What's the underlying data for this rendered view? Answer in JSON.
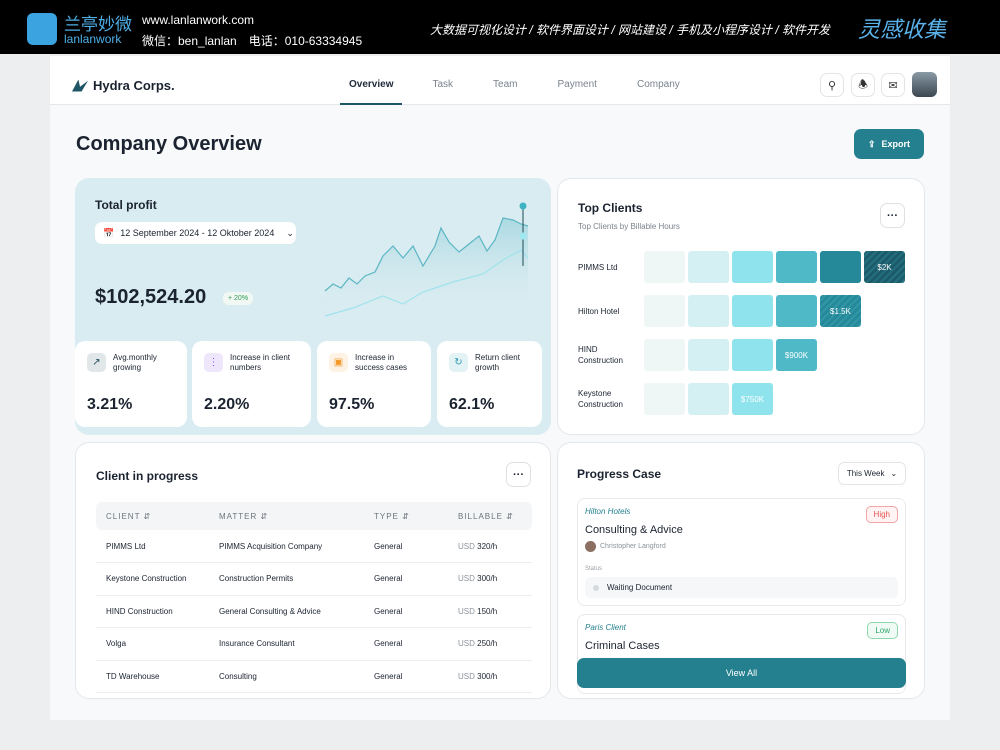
{
  "banner": {
    "name": "兰亭妙微",
    "sub": "lanlanwork",
    "url": "www.lanlanwork.com",
    "contact": "微信：ben_lanlan　电话：010-63334945",
    "services": "大数据可视化设计 / 软件界面设计 / 网站建设 / 手机及小程序设计 / 软件开发",
    "brand": "灵感收集"
  },
  "nav": {
    "logo": "Hydra Corps.",
    "tabs": [
      "Overview",
      "Task",
      "Team",
      "Payment",
      "Company"
    ],
    "active": "Overview"
  },
  "page": {
    "title": "Company Overview",
    "export": "Export"
  },
  "profit": {
    "title": "Total profit",
    "date_range": "12 September 2024 - 12 Oktober 2024",
    "amount": "$102,524.20",
    "change": "+ 20%",
    "stats": [
      {
        "label": "Avg.monthly growing",
        "value": "3.21%",
        "icon": "trend-chart-icon",
        "color": "#1c4a57"
      },
      {
        "label": "Increase in client numbers",
        "value": "2.20%",
        "icon": "users-icon",
        "color": "#7c4dea"
      },
      {
        "label": "Increase in success cases",
        "value": "97.5%",
        "icon": "briefcase-icon",
        "color": "#f39a2c"
      },
      {
        "label": "Return client growth",
        "value": "62.1%",
        "icon": "refresh-icon",
        "color": "#2a9bb0"
      }
    ]
  },
  "top_clients": {
    "title": "Top Clients",
    "subtitle": "Top Clients by Billable Hours",
    "rows": [
      {
        "name": "PIMMS Ltd",
        "level": 6,
        "value": "$2K"
      },
      {
        "name": "Hilton Hotel",
        "level": 5,
        "value": "$1.5K"
      },
      {
        "name": "HIND Construction",
        "level": 4,
        "value": "$900K"
      },
      {
        "name": "Keystone Construction",
        "level": 3,
        "value": "$750K"
      }
    ],
    "colors": [
      "#eef6f6",
      "#d5f0f2",
      "#8ee3ec",
      "#4fb9c7",
      "#25899a",
      "#1c5b6a"
    ]
  },
  "client_progress": {
    "title": "Client in progress",
    "columns": [
      "CLIENT",
      "MATTER",
      "TYPE",
      "BILLABLE"
    ],
    "rows": [
      [
        "PIMMS Ltd",
        "PIMMS Acquisition Company",
        "General",
        "USD",
        "320/h"
      ],
      [
        "Keystone Construction",
        "Construction Permits",
        "General",
        "USD",
        "300/h"
      ],
      [
        "HIND Construction",
        "General Consulting & Advice",
        "General",
        "USD",
        "150/h"
      ],
      [
        "Volga",
        "Insurance Consultant",
        "General",
        "USD",
        "250/h"
      ],
      [
        "TD Warehouse",
        "Consulting",
        "General",
        "USD",
        "300/h"
      ]
    ]
  },
  "progress_case": {
    "title": "Progress Case",
    "filter": "This Week",
    "view_all": "View All",
    "cases": [
      {
        "client": "Hilton Hotels",
        "title": "Consulting & Advice",
        "priority": "High",
        "person": "Christopher Langford",
        "status_label": "Status",
        "status": "Waiting Document"
      },
      {
        "client": "Paris Client",
        "title": "Criminal Cases",
        "priority": "Low"
      }
    ]
  }
}
